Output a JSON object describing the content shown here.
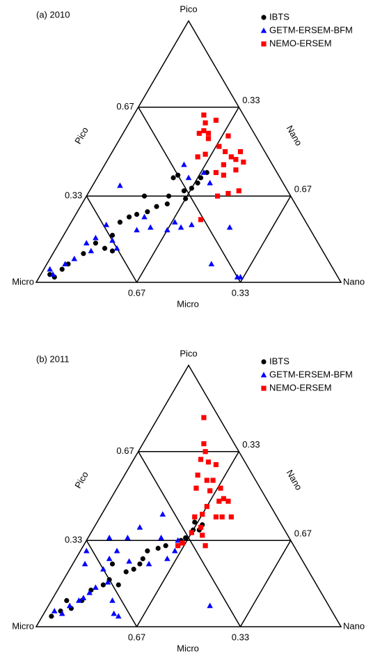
{
  "chart_data": [
    {
      "type": "ternary",
      "title": "(a) 2010",
      "vertices": {
        "top": "Pico",
        "left": "Micro",
        "right": "Nano"
      },
      "axes": {
        "pico": {
          "title": "Pico",
          "ticks": [
            0.33,
            0.67
          ]
        },
        "nano": {
          "title": "Nano",
          "ticks": [
            0.33,
            0.67
          ]
        },
        "micro": {
          "title": "Micro",
          "ticks": [
            0.33,
            0.67
          ]
        }
      },
      "series": [
        {
          "name": "IBTS",
          "color": "#000000",
          "marker": "circle",
          "pico": [
            0.03,
            0.02,
            0.05,
            0.07,
            0.11,
            0.15,
            0.13,
            0.18,
            0.23,
            0.25,
            0.26,
            0.27,
            0.29,
            0.3,
            0.33,
            0.4,
            0.33,
            0.41,
            0.35,
            0.32,
            0.36,
            0.38,
            0.4,
            0.42,
            0.12
          ],
          "nano": [
            0.03,
            0.05,
            0.06,
            0.07,
            0.1,
            0.12,
            0.16,
            0.16,
            0.16,
            0.18,
            0.2,
            0.23,
            0.25,
            0.28,
            0.27,
            0.25,
            0.19,
            0.26,
            0.31,
            0.33,
            0.33,
            0.34,
            0.34,
            0.35,
            0.19
          ]
        },
        {
          "name": "GETM-ERSEM-BFM",
          "color": "#0000ff",
          "marker": "triangle",
          "pico": [
            0.05,
            0.03,
            0.07,
            0.09,
            0.15,
            0.12,
            0.17,
            0.22,
            0.16,
            0.13,
            0.37,
            0.2,
            0.25,
            0.21,
            0.2,
            0.23,
            0.45,
            0.4,
            0.21,
            0.22,
            0.38,
            0.42,
            0.07,
            0.02,
            0.02,
            0.21
          ],
          "nano": [
            0.02,
            0.04,
            0.06,
            0.08,
            0.09,
            0.12,
            0.11,
            0.12,
            0.17,
            0.2,
            0.09,
            0.23,
            0.23,
            0.27,
            0.33,
            0.34,
            0.26,
            0.3,
            0.37,
            0.4,
            0.38,
            0.34,
            0.54,
            0.65,
            0.66,
            0.53
          ]
        },
        {
          "name": "NEMO-ERSEM",
          "color": "#ff0000",
          "marker": "square",
          "pico": [
            0.64,
            0.61,
            0.58,
            0.57,
            0.57,
            0.55,
            0.62,
            0.5,
            0.48,
            0.47,
            0.5,
            0.46,
            0.43,
            0.45,
            0.41,
            0.52,
            0.49,
            0.48,
            0.33,
            0.34,
            0.35,
            0.24,
            0.56,
            0.42
          ],
          "nano": [
            0.23,
            0.25,
            0.26,
            0.28,
            0.25,
            0.29,
            0.28,
            0.37,
            0.4,
            0.42,
            0.42,
            0.45,
            0.44,
            0.39,
            0.41,
            0.34,
            0.31,
            0.29,
            0.43,
            0.46,
            0.49,
            0.42,
            0.35,
            0.38
          ]
        }
      ]
    },
    {
      "type": "ternary",
      "title": "(b) 2011",
      "vertices": {
        "top": "Pico",
        "left": "Micro",
        "right": "Nano"
      },
      "axes": {
        "pico": {
          "title": "Pico",
          "ticks": [
            0.33,
            0.67
          ]
        },
        "nano": {
          "title": "Nano",
          "ticks": [
            0.33,
            0.67
          ]
        },
        "micro": {
          "title": "Micro",
          "ticks": [
            0.33,
            0.67
          ]
        }
      },
      "series": [
        {
          "name": "IBTS",
          "color": "#000000",
          "marker": "circle",
          "pico": [
            0.04,
            0.06,
            0.07,
            0.1,
            0.14,
            0.16,
            0.18,
            0.16,
            0.21,
            0.22,
            0.24,
            0.26,
            0.29,
            0.3,
            0.31,
            0.33,
            0.34,
            0.37,
            0.37,
            0.4,
            0.39,
            0.24,
            0.1
          ],
          "nano": [
            0.03,
            0.05,
            0.08,
            0.1,
            0.11,
            0.14,
            0.15,
            0.19,
            0.19,
            0.21,
            0.22,
            0.22,
            0.22,
            0.25,
            0.27,
            0.31,
            0.32,
            0.33,
            0.35,
            0.32,
            0.35,
            0.13,
            0.05
          ]
        },
        {
          "name": "GETM-ERSEM-BFM",
          "color": "#0000ff",
          "marker": "triangle",
          "pico": [
            0.06,
            0.05,
            0.08,
            0.1,
            0.11,
            0.13,
            0.15,
            0.17,
            0.1,
            0.05,
            0.04,
            0.22,
            0.26,
            0.29,
            0.34,
            0.38,
            0.25,
            0.34,
            0.24,
            0.24,
            0.43,
            0.34,
            0.26,
            0.29,
            0.33,
            0.08,
            0.29
          ],
          "nano": [
            0.03,
            0.06,
            0.07,
            0.09,
            0.1,
            0.11,
            0.12,
            0.15,
            0.2,
            0.23,
            0.25,
            0.11,
            0.11,
            0.12,
            0.13,
            0.15,
            0.18,
            0.07,
            0.04,
            0.25,
            0.2,
            0.24,
            0.3,
            0.31,
            0.3,
            0.53,
            0.02
          ]
        },
        {
          "name": "NEMO-ERSEM",
          "color": "#ff0000",
          "marker": "square",
          "pico": [
            0.8,
            0.7,
            0.67,
            0.64,
            0.63,
            0.62,
            0.58,
            0.56,
            0.56,
            0.53,
            0.52,
            0.53,
            0.49,
            0.48,
            0.48,
            0.46,
            0.43,
            0.42,
            0.42,
            0.42,
            0.42,
            0.38,
            0.36,
            0.32,
            0.31,
            0.35,
            0.31
          ],
          "nano": [
            0.15,
            0.2,
            0.22,
            0.22,
            0.25,
            0.28,
            0.24,
            0.28,
            0.3,
            0.26,
            0.31,
            0.34,
            0.37,
            0.39,
            0.36,
            0.33,
            0.33,
            0.38,
            0.4,
            0.43,
            0.31,
            0.35,
            0.33,
            0.32,
            0.31,
            0.37,
            0.4
          ]
        }
      ]
    }
  ]
}
